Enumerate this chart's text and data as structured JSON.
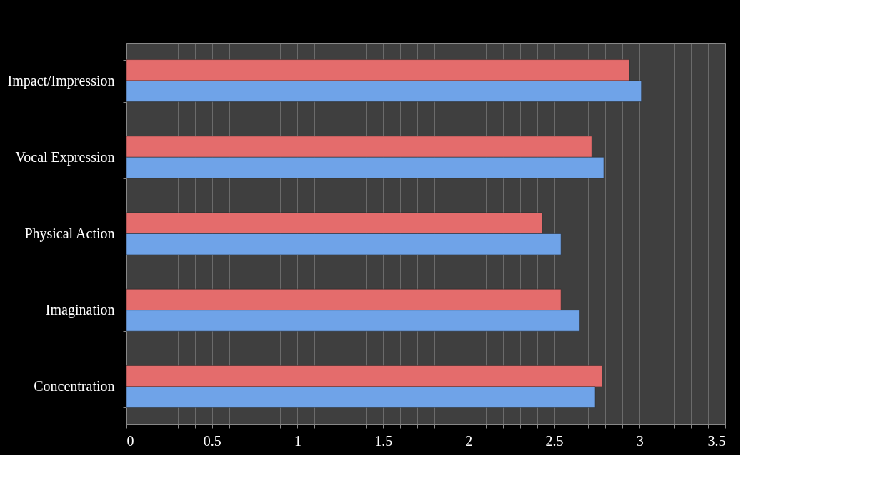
{
  "chart_data": {
    "type": "bar",
    "orientation": "horizontal",
    "categories": [
      "Impact/Impression",
      "Vocal Expression",
      "Physical Action",
      "Imagination",
      "Concentration"
    ],
    "series": [
      {
        "color": "#e46c6c",
        "values": [
          2.94,
          2.72,
          2.43,
          2.54,
          2.78
        ]
      },
      {
        "color": "#6fa3e8",
        "values": [
          3.01,
          2.79,
          2.54,
          2.65,
          2.74
        ]
      }
    ],
    "xlim": [
      0,
      3.5
    ],
    "xticks": [
      0,
      {
        "value": 0.1,
        "label": null
      },
      {
        "value": 0.2,
        "label": null
      },
      {
        "value": 0.3,
        "label": null
      },
      {
        "value": 0.4,
        "label": null
      },
      0.5,
      {
        "value": 0.6,
        "label": null
      },
      {
        "value": 0.7,
        "label": null
      },
      {
        "value": 0.8,
        "label": null
      },
      {
        "value": 0.9,
        "label": null
      },
      1,
      {
        "value": 1.1,
        "label": null
      },
      {
        "value": 1.2,
        "label": null
      },
      {
        "value": 1.3,
        "label": null
      },
      {
        "value": 1.4,
        "label": null
      },
      1.5,
      {
        "value": 1.6,
        "label": null
      },
      {
        "value": 1.7,
        "label": null
      },
      {
        "value": 1.8,
        "label": null
      },
      {
        "value": 1.9,
        "label": null
      },
      2,
      {
        "value": 2.1,
        "label": null
      },
      {
        "value": 2.2,
        "label": null
      },
      {
        "value": 2.3,
        "label": null
      },
      {
        "value": 2.4,
        "label": null
      },
      2.5,
      {
        "value": 2.6,
        "label": null
      },
      {
        "value": 2.7,
        "label": null
      },
      {
        "value": 2.8,
        "label": null
      },
      {
        "value": 2.9,
        "label": null
      },
      3,
      {
        "value": 3.1,
        "label": null
      },
      {
        "value": 3.2,
        "label": null
      },
      {
        "value": 3.3,
        "label": null
      },
      {
        "value": 3.4,
        "label": null
      },
      3.5
    ],
    "grid": "x"
  }
}
